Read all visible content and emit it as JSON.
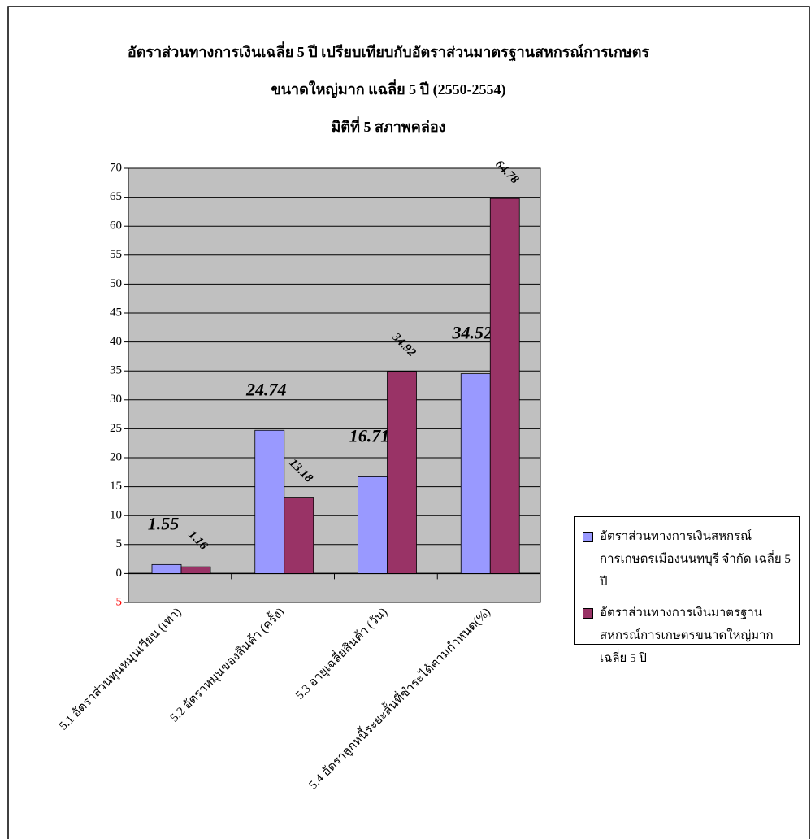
{
  "chart_data": {
    "type": "bar",
    "title": [
      "อัตราส่วนทางการเงินเฉลี่ย 5 ปี เปรียบเทียบกับอัตราส่วนมาตรฐานสหกรณ์การเกษตร",
      "ขนาดใหญ่มาก แฉลี่ย 5 ปี (2550-2554)",
      "มิติที่ 5 สภาพคล่อง"
    ],
    "categories": [
      "5.1 อัตราส่วนทุนหมุนเวียน (เท่า)",
      "5.2 อัตราหมุนของสินค้า (ครั้ง)",
      "5.3 อายุเฉลี่ยสินค้า (วัน)",
      "5.4 อัตราลูกหนี้ระยะสั้นที่ชำระได้ตามกำหนด(%)"
    ],
    "series": [
      {
        "name": "อัตราส่วนทางการเงินสหกรณ์การเกษตรเมืองนนทบุรี จำกัด เฉลี่ย 5 ปี",
        "color": "#9999ff",
        "values": [
          1.55,
          24.74,
          16.71,
          34.52
        ]
      },
      {
        "name": "อัตราส่วนทางการเงินมาตรฐานสหกรณ์การเกษตรขนาดใหญ่มาก เฉลี่ย  5 ปี",
        "color": "#993366",
        "values": [
          1.16,
          13.18,
          34.92,
          64.78
        ]
      }
    ],
    "ylim": [
      -5,
      70
    ],
    "yticks": [
      {
        "value": -5,
        "label": "5"
      },
      0,
      5,
      10,
      15,
      20,
      25,
      30,
      35,
      40,
      45,
      50,
      55,
      60,
      65,
      70
    ],
    "negative_tick_color": "#ff0000",
    "grid": true,
    "plot_background": "#c0c0c0",
    "legend": "right"
  }
}
